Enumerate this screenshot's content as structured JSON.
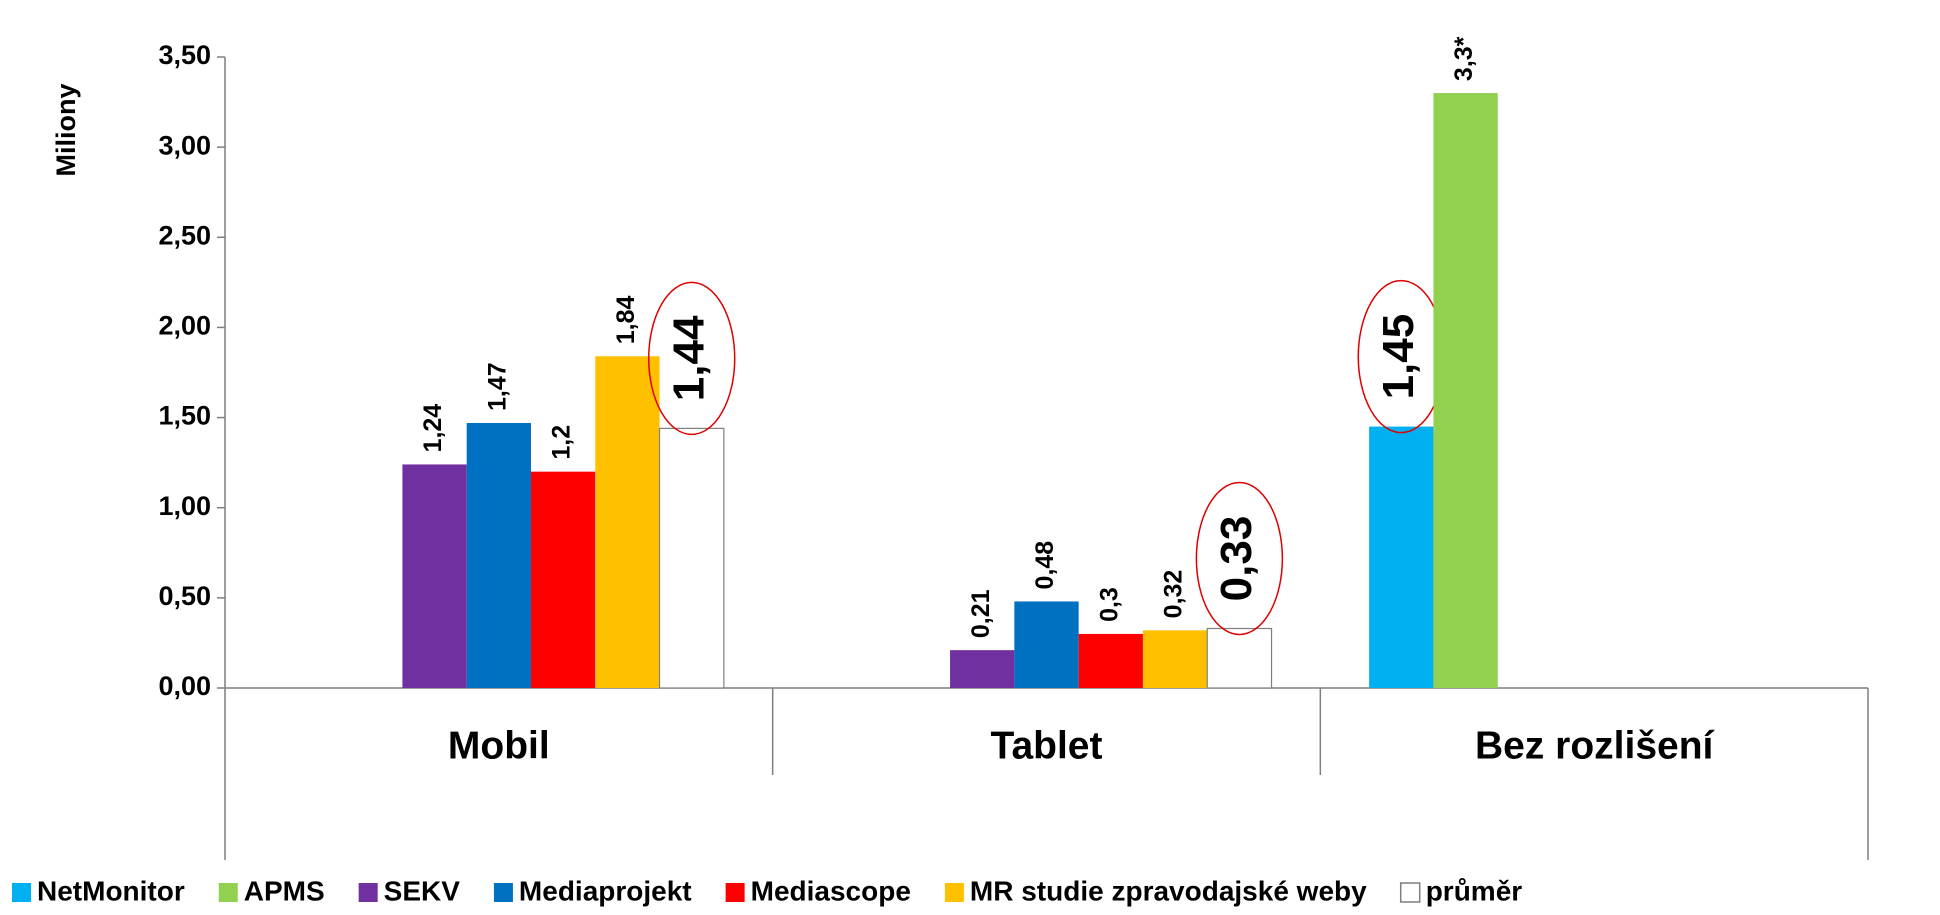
{
  "chart_data": {
    "type": "bar",
    "y_label": "Miliony",
    "categories": [
      "Mobil",
      "Tablet",
      "Bez rozlišení"
    ],
    "series": [
      {
        "name": "NetMonitor",
        "color": "#00b0f0",
        "values": [
          null,
          null,
          1.45
        ],
        "value_labels": [
          null,
          null,
          "1,45"
        ]
      },
      {
        "name": "APMS",
        "color": "#92d050",
        "values": [
          null,
          null,
          3.3
        ],
        "value_labels": [
          null,
          null,
          "3,3*"
        ]
      },
      {
        "name": "SEKV",
        "color": "#7030a0",
        "values": [
          1.24,
          0.21,
          null
        ],
        "value_labels": [
          "1,24",
          "0,21",
          null
        ]
      },
      {
        "name": "Mediaprojekt",
        "color": "#0070c0",
        "values": [
          1.47,
          0.48,
          null
        ],
        "value_labels": [
          "1,47",
          "0,48",
          null
        ]
      },
      {
        "name": "Mediascope",
        "color": "#ff0000",
        "values": [
          1.2,
          0.3,
          null
        ],
        "value_labels": [
          "1,2",
          "0,3",
          null
        ]
      },
      {
        "name": "MR studie zpravodajské weby",
        "color": "#ffc000",
        "values": [
          1.84,
          0.32,
          null
        ],
        "value_labels": [
          "1,84",
          "0,32",
          null
        ]
      },
      {
        "name": "průměr",
        "color": "#ffffff",
        "values": [
          1.44,
          0.33,
          null
        ],
        "value_labels": [
          "1,44",
          "0,33",
          null
        ]
      }
    ],
    "ylim": [
      0,
      3.5
    ],
    "yticks": [
      {
        "value": 0,
        "label": "0,00"
      },
      {
        "value": 0.5,
        "label": "0,50"
      },
      {
        "value": 1,
        "label": "1,00"
      },
      {
        "value": 1.5,
        "label": "1,50"
      },
      {
        "value": 2,
        "label": "2,00"
      },
      {
        "value": 2.5,
        "label": "2,50"
      },
      {
        "value": 3,
        "label": "3,00"
      },
      {
        "value": 3.5,
        "label": "3,50"
      }
    ],
    "legend": "bottom"
  }
}
